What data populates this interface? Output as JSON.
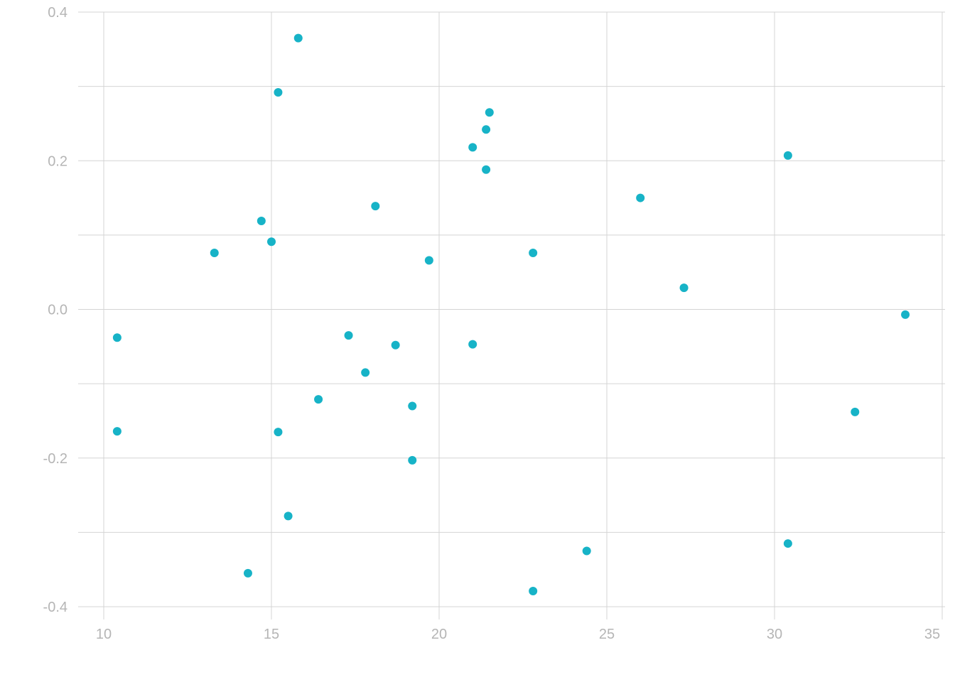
{
  "chart_data": {
    "type": "scatter",
    "title": "",
    "xlabel": "",
    "ylabel": "",
    "xlim": [
      10,
      35
    ],
    "ylim": [
      -0.4,
      0.4
    ],
    "x_ticks": [
      10,
      15,
      20,
      25,
      30,
      35
    ],
    "x_tick_labels": [
      "10",
      "15",
      "20",
      "25",
      "30",
      "35"
    ],
    "y_ticks": [
      -0.4,
      -0.2,
      0.0,
      0.2,
      0.4
    ],
    "y_tick_labels": [
      "-0.4",
      "-0.2",
      "0.0",
      "0.2",
      "0.4"
    ],
    "y_minor_gridlines": [
      -0.3,
      -0.1,
      0.1,
      0.3
    ],
    "grid": true,
    "legend": "none",
    "point_color": "#17b3c7",
    "points": [
      {
        "x": 15.8,
        "y": 0.365
      },
      {
        "x": 15.2,
        "y": 0.292
      },
      {
        "x": 21.5,
        "y": 0.265
      },
      {
        "x": 21.4,
        "y": 0.242
      },
      {
        "x": 21.0,
        "y": 0.218
      },
      {
        "x": 30.4,
        "y": 0.207
      },
      {
        "x": 21.4,
        "y": 0.188
      },
      {
        "x": 26.0,
        "y": 0.15
      },
      {
        "x": 18.1,
        "y": 0.139
      },
      {
        "x": 14.7,
        "y": 0.119
      },
      {
        "x": 15.0,
        "y": 0.091
      },
      {
        "x": 13.3,
        "y": 0.076
      },
      {
        "x": 22.8,
        "y": 0.076
      },
      {
        "x": 19.7,
        "y": 0.066
      },
      {
        "x": 27.3,
        "y": 0.029
      },
      {
        "x": 33.9,
        "y": -0.007
      },
      {
        "x": 10.4,
        "y": -0.038
      },
      {
        "x": 17.3,
        "y": -0.035
      },
      {
        "x": 18.7,
        "y": -0.048
      },
      {
        "x": 21.0,
        "y": -0.047
      },
      {
        "x": 17.8,
        "y": -0.085
      },
      {
        "x": 16.4,
        "y": -0.121
      },
      {
        "x": 19.2,
        "y": -0.13
      },
      {
        "x": 32.4,
        "y": -0.138
      },
      {
        "x": 10.4,
        "y": -0.164
      },
      {
        "x": 15.2,
        "y": -0.165
      },
      {
        "x": 19.2,
        "y": -0.203
      },
      {
        "x": 15.5,
        "y": -0.278
      },
      {
        "x": 30.4,
        "y": -0.315
      },
      {
        "x": 24.4,
        "y": -0.325
      },
      {
        "x": 14.3,
        "y": -0.355
      },
      {
        "x": 22.8,
        "y": -0.379
      }
    ]
  }
}
